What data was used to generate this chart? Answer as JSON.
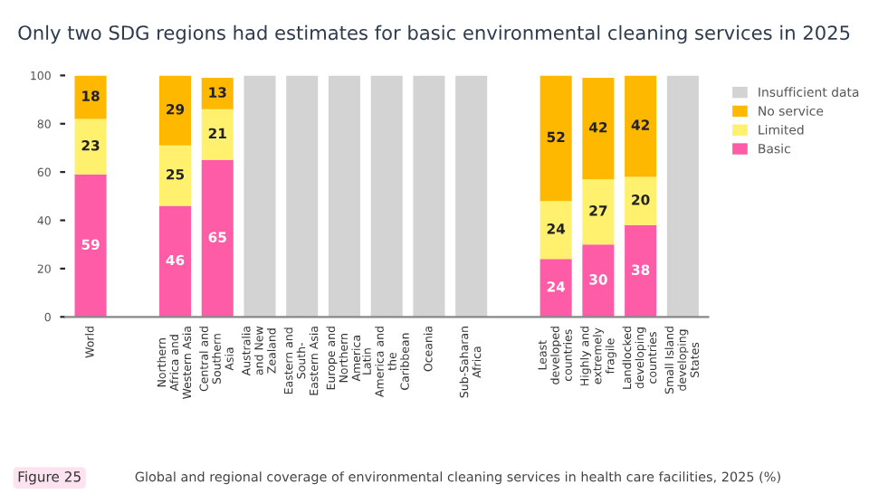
{
  "chart_data": {
    "type": "bar",
    "title": "Only two SDG regions had estimates for basic environmental cleaning services in 2025",
    "categories": [
      "World",
      null,
      "Northern Africa and Western Asia",
      "Central and Southern Asia",
      "Australia and New Zealand",
      "Eastern and South-Eastern Asia",
      "Europe and Northern America",
      "Latin America and the Caribbean",
      "Oceania",
      "Sub-Saharan Africa",
      null,
      "Least developed countries",
      "Highly and extremely fragile",
      "Landlocked developing countries",
      "Small Island developing States"
    ],
    "stacked": true,
    "series": [
      {
        "name": "Basic",
        "color": "#ff5ca8",
        "values": [
          59,
          null,
          46,
          65,
          null,
          null,
          null,
          null,
          null,
          null,
          null,
          24,
          30,
          38,
          null
        ],
        "value_labels": [
          "59",
          null,
          "46",
          "65",
          null,
          null,
          null,
          null,
          null,
          null,
          null,
          "24",
          "30",
          "38",
          null
        ]
      },
      {
        "name": "Limited",
        "color": "#fff06e",
        "values": [
          23,
          null,
          25,
          21,
          null,
          null,
          null,
          null,
          null,
          null,
          null,
          24,
          27,
          20,
          null
        ],
        "value_labels": [
          "23",
          null,
          "25",
          "21",
          null,
          null,
          null,
          null,
          null,
          null,
          null,
          "24",
          "27",
          "20",
          null
        ]
      },
      {
        "name": "No service",
        "color": "#ffb800",
        "values": [
          18,
          null,
          29,
          13,
          null,
          null,
          null,
          null,
          null,
          null,
          null,
          52,
          42,
          42,
          null
        ],
        "value_labels": [
          "18",
          null,
          "29",
          "13",
          null,
          null,
          null,
          null,
          null,
          null,
          null,
          "52",
          "42",
          "42",
          null
        ]
      },
      {
        "name": "Insufficient data",
        "color": "#d3d3d3",
        "values": [
          null,
          null,
          null,
          null,
          100,
          100,
          100,
          100,
          100,
          100,
          null,
          null,
          null,
          null,
          100
        ]
      }
    ],
    "ylim": [
      0,
      100
    ],
    "yticks": [
      0,
      20,
      40,
      60,
      80,
      100
    ],
    "grid": false,
    "legend": "top right",
    "annotations": [
      "Figure 25",
      "Global and regional coverage of environmental cleaning services in health care facilities, 2025 (%)"
    ]
  }
}
